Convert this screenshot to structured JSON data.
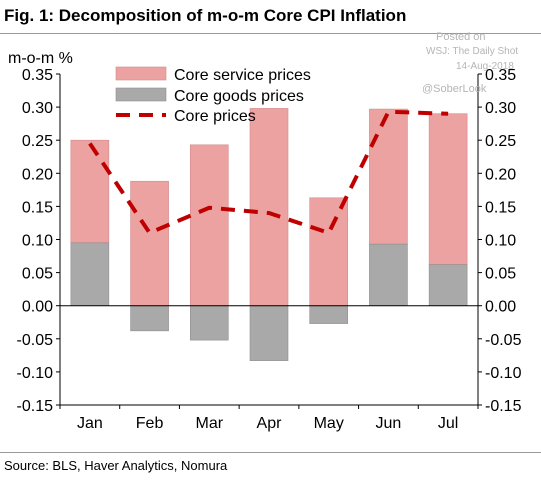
{
  "title": "Fig. 1: Decomposition of m-o-m Core CPI Inflation",
  "source": "Source: BLS, Haver Analytics, Nomura",
  "watermark": {
    "posted": "Posted on",
    "outlet": "WSJ: The Daily Shot",
    "date": "14-Aug-2018",
    "handle": "@SoberLook"
  },
  "colors": {
    "services": "#eda2a2",
    "goods": "#a9a9a9",
    "core": "#c00000"
  },
  "chart_data": {
    "type": "bar",
    "stacked": true,
    "categories": [
      "Jan",
      "Feb",
      "Mar",
      "Apr",
      "May",
      "Jun",
      "Jul"
    ],
    "ylabel": "m-o-m %",
    "ylim": [
      -0.15,
      0.35
    ],
    "yticks": [
      "0.35",
      "0.30",
      "0.25",
      "0.20",
      "0.15",
      "0.10",
      "0.05",
      "0.00",
      "-0.05",
      "-0.10",
      "-0.15"
    ],
    "grid": false,
    "dual_axis": true,
    "legend_position": "top-left",
    "series": [
      {
        "name": "Core service prices",
        "kind": "bar",
        "values": [
          0.155,
          0.188,
          0.243,
          0.298,
          0.163,
          0.204,
          0.228
        ]
      },
      {
        "name": "Core goods prices",
        "kind": "bar",
        "values": [
          0.095,
          -0.038,
          -0.052,
          -0.083,
          -0.027,
          0.093,
          0.062
        ]
      },
      {
        "name": "Core prices",
        "kind": "line",
        "style": "dashed",
        "values": [
          0.245,
          0.11,
          0.148,
          0.14,
          0.11,
          0.293,
          0.29
        ]
      }
    ]
  }
}
